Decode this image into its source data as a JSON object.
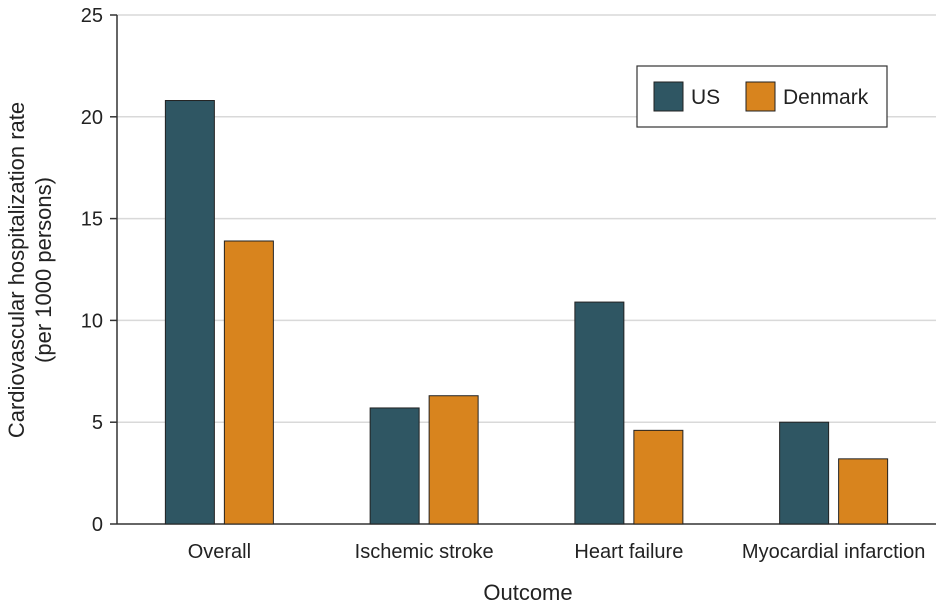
{
  "chart_data": {
    "type": "bar",
    "title": "",
    "xlabel": "Outcome",
    "ylabel": "Cardiovascular hospitalization rate",
    "ylabel_line2": "(per 1000 persons)",
    "categories": [
      "Overall",
      "Ischemic stroke",
      "Heart failure",
      "Myocardial infarction"
    ],
    "series": [
      {
        "name": "US",
        "values": [
          20.8,
          5.7,
          10.9,
          5.0
        ],
        "color": "#2f5663"
      },
      {
        "name": "Denmark",
        "values": [
          13.9,
          6.3,
          4.6,
          3.2
        ],
        "color": "#d8841e"
      }
    ],
    "ylim": [
      0,
      25
    ],
    "yticks": [
      0,
      5,
      10,
      15,
      20,
      25
    ],
    "grid": true,
    "grid_color": "#d9d9d9",
    "legend": "top-right"
  }
}
